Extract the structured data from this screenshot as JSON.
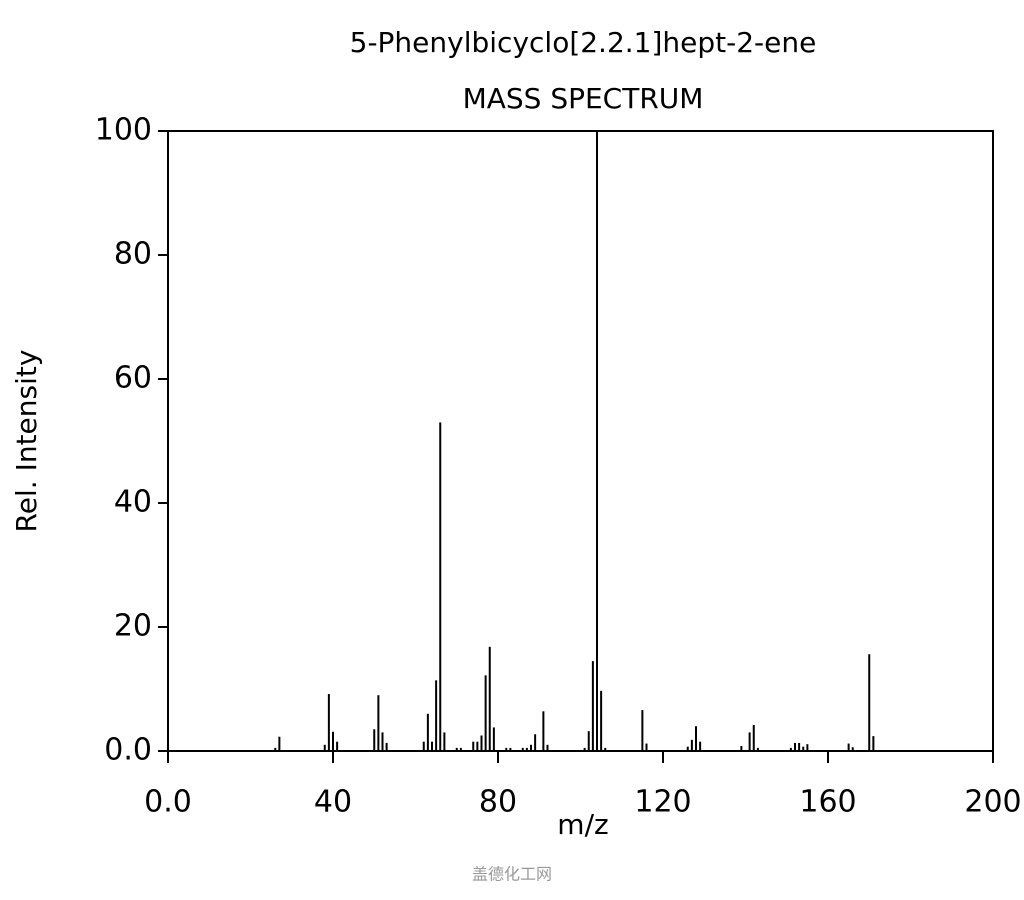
{
  "chart_data": {
    "type": "bar",
    "title": "5-Phenylbicyclo[2.2.1]hept-2-ene",
    "subtitle": "MASS SPECTRUM",
    "xlabel": "m/z",
    "ylabel": "Rel. Intensity",
    "watermark": "盖德化工网",
    "color": "#000000",
    "xlim": [
      0,
      200
    ],
    "ylim": [
      0,
      100
    ],
    "xticks": [
      {
        "value": 0,
        "label": "0.0"
      },
      40,
      80,
      120,
      160,
      200
    ],
    "yticks": [
      {
        "value": 0,
        "label": "0.0"
      },
      20,
      40,
      60,
      80,
      100
    ],
    "x": [
      26,
      27,
      38,
      39,
      40,
      41,
      50,
      51,
      52,
      53,
      62,
      63,
      64,
      65,
      66,
      67,
      70,
      71,
      74,
      75,
      76,
      77,
      78,
      79,
      82,
      83,
      86,
      87,
      88,
      89,
      91,
      92,
      101,
      102,
      103,
      104,
      105,
      106,
      115,
      116,
      126,
      127,
      128,
      129,
      139,
      141,
      142,
      143,
      151,
      152,
      153,
      154,
      155,
      165,
      166,
      170,
      171
    ],
    "values": [
      0.5,
      2.3,
      1,
      9.2,
      3.1,
      1.5,
      3.5,
      9,
      3,
      1.3,
      1.5,
      6,
      1.5,
      11.4,
      53,
      3,
      0.5,
      0.5,
      1.5,
      1.5,
      2.5,
      12.2,
      16.8,
      3.8,
      0.5,
      0.5,
      0.5,
      0.5,
      1,
      2.7,
      6.4,
      1,
      0.5,
      3.2,
      14.5,
      100,
      9.7,
      0.5,
      6.6,
      1.2,
      0.7,
      1.8,
      4,
      1.5,
      0.8,
      3,
      4.2,
      0.5,
      0.5,
      1.3,
      1.3,
      0.7,
      1.1,
      1.2,
      0.6,
      15.6,
      2.4
    ]
  }
}
